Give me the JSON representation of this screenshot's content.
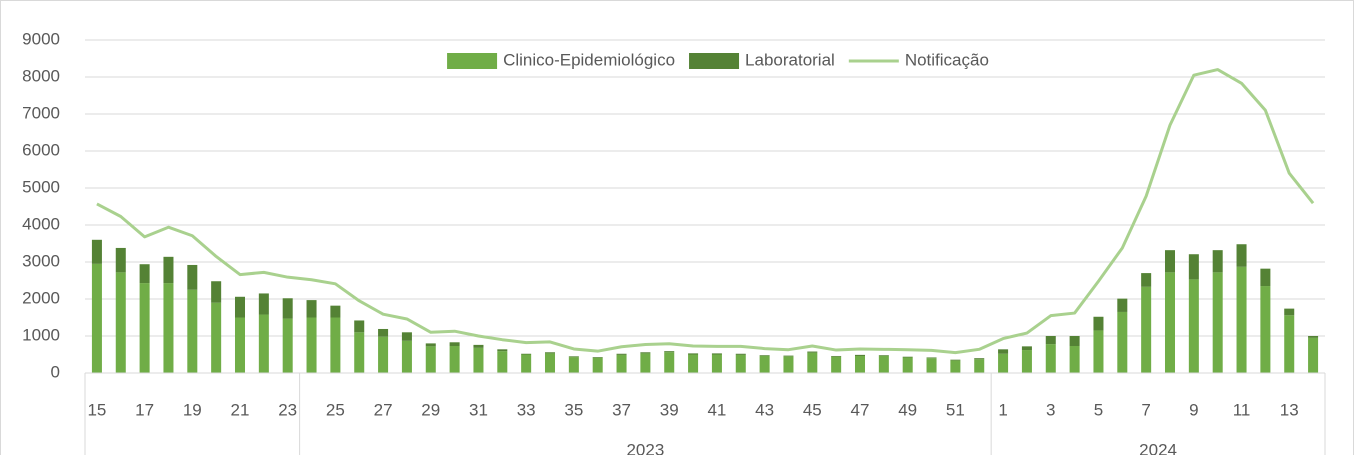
{
  "chart_data": {
    "type": "bar_line",
    "categories": [
      15,
      null,
      17,
      null,
      19,
      null,
      21,
      null,
      23,
      null,
      25,
      null,
      27,
      null,
      29,
      null,
      31,
      null,
      33,
      null,
      35,
      null,
      37,
      null,
      39,
      null,
      41,
      null,
      43,
      null,
      45,
      null,
      47,
      null,
      49,
      null,
      51,
      null,
      1,
      null,
      3,
      null,
      5,
      null,
      7,
      null,
      9,
      null,
      11,
      null,
      13,
      null
    ],
    "group_labels": [
      null,
      "2023",
      "2024"
    ],
    "group_sizes": [
      9,
      29,
      14
    ],
    "series": [
      {
        "name": "Clinico-Epidemiológico",
        "color": "#70ad47",
        "kind": "bar",
        "values": [
          2950,
          2720,
          2430,
          2430,
          2250,
          1900,
          1500,
          1580,
          1470,
          1500,
          1500,
          1100,
          980,
          870,
          720,
          730,
          680,
          590,
          500,
          530,
          430,
          410,
          490,
          530,
          560,
          500,
          500,
          490,
          460,
          450,
          550,
          440,
          460,
          460,
          420,
          400,
          340,
          370,
          520,
          620,
          780,
          730,
          1150,
          1650,
          2330,
          2720,
          2530,
          2720,
          2870,
          2350,
          1560,
          950
        ]
      },
      {
        "name": "Laboratorial",
        "color": "#548235",
        "kind": "bar",
        "values": [
          650,
          660,
          510,
          710,
          670,
          580,
          560,
          570,
          550,
          470,
          320,
          320,
          210,
          230,
          80,
          100,
          80,
          50,
          20,
          30,
          20,
          20,
          30,
          30,
          30,
          30,
          30,
          30,
          20,
          20,
          30,
          20,
          30,
          20,
          20,
          20,
          20,
          30,
          120,
          100,
          220,
          270,
          370,
          360,
          370,
          600,
          680,
          600,
          610,
          470,
          180,
          50
        ]
      },
      {
        "name": "Notificação",
        "color": "#a9d18e",
        "kind": "line",
        "values": [
          4570,
          4230,
          3680,
          3940,
          3710,
          3150,
          2660,
          2720,
          2590,
          2520,
          2410,
          1950,
          1590,
          1460,
          1100,
          1130,
          1000,
          900,
          820,
          840,
          650,
          590,
          710,
          770,
          790,
          730,
          720,
          720,
          660,
          630,
          730,
          620,
          650,
          640,
          630,
          610,
          550,
          640,
          930,
          1080,
          1550,
          1620,
          2480,
          3380,
          4780,
          6700,
          8050,
          8200,
          7830,
          7100,
          5400,
          4590
        ]
      }
    ],
    "ylim": [
      0,
      9000
    ],
    "yticks": [
      0,
      1000,
      2000,
      3000,
      4000,
      5000,
      6000,
      7000,
      8000,
      9000
    ],
    "grid": true,
    "legend": "top"
  }
}
